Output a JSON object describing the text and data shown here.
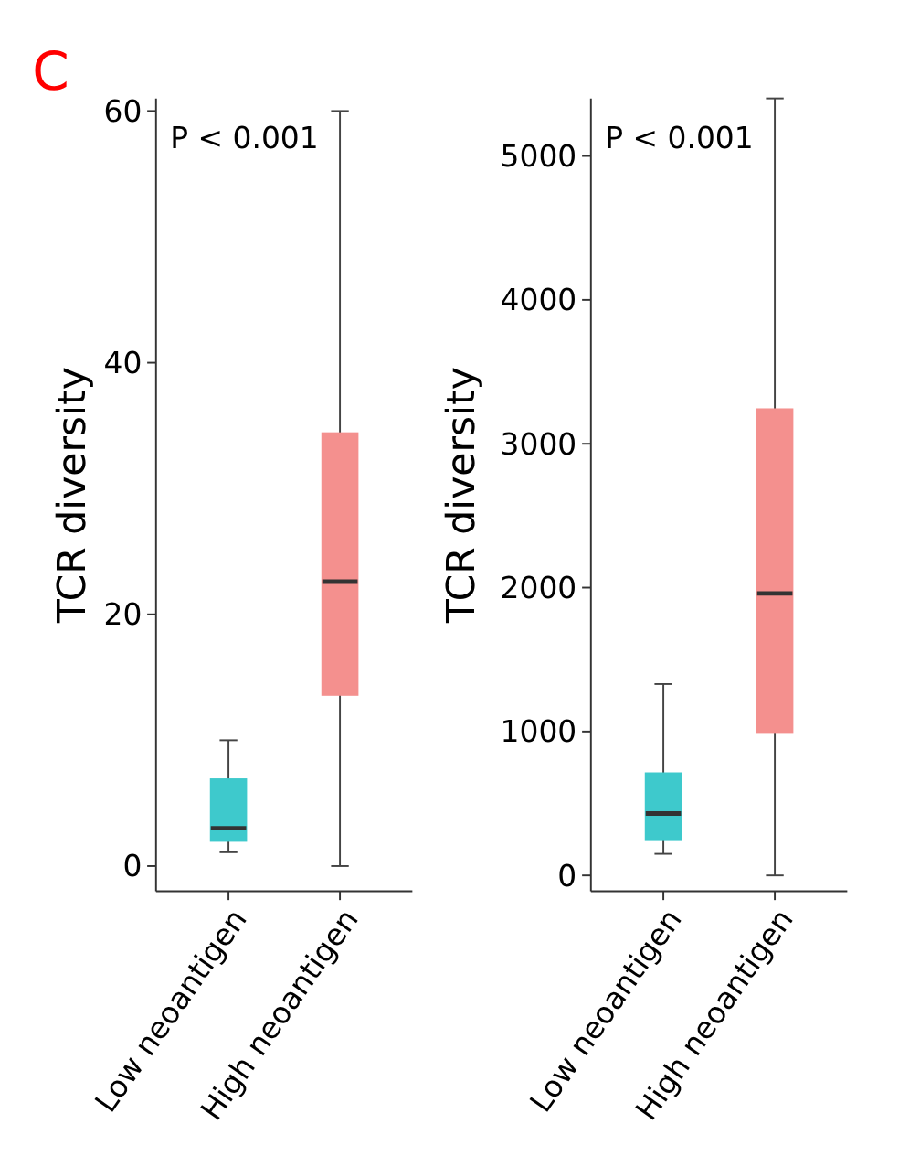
{
  "chart_data": [
    {
      "type": "box",
      "ylabel": "TCR diversity",
      "categories": [
        "Low neoantigen",
        "High neoantigen"
      ],
      "colors": [
        "#3ec9cc",
        "#f4908e"
      ],
      "ylim": [
        -2,
        61
      ],
      "yticks": [
        0,
        20,
        40,
        60
      ],
      "annotations": [
        "C",
        "P < 0.001"
      ],
      "boxes": [
        {
          "low": 1.1,
          "q1": 2,
          "median": 3,
          "q3": 6.9,
          "high": 10
        },
        {
          "low": 0,
          "q1": 13.6,
          "median": 22.6,
          "q3": 34.4,
          "high": 60
        }
      ]
    },
    {
      "type": "box",
      "ylabel": "TCR diversity",
      "categories": [
        "Low neoantigen",
        "High neoantigen"
      ],
      "colors": [
        "#3ec9cc",
        "#f4908e"
      ],
      "ylim": [
        -110,
        5400
      ],
      "yticks": [
        0,
        1000,
        2000,
        3000,
        4000,
        5000
      ],
      "annotations": [
        "P < 0.001"
      ],
      "boxes": [
        {
          "low": 150,
          "q1": 245,
          "median": 430,
          "q3": 710,
          "high": 1330
        },
        {
          "low": 0,
          "q1": 990,
          "median": 1960,
          "q3": 3240,
          "high": 5400
        }
      ]
    }
  ]
}
